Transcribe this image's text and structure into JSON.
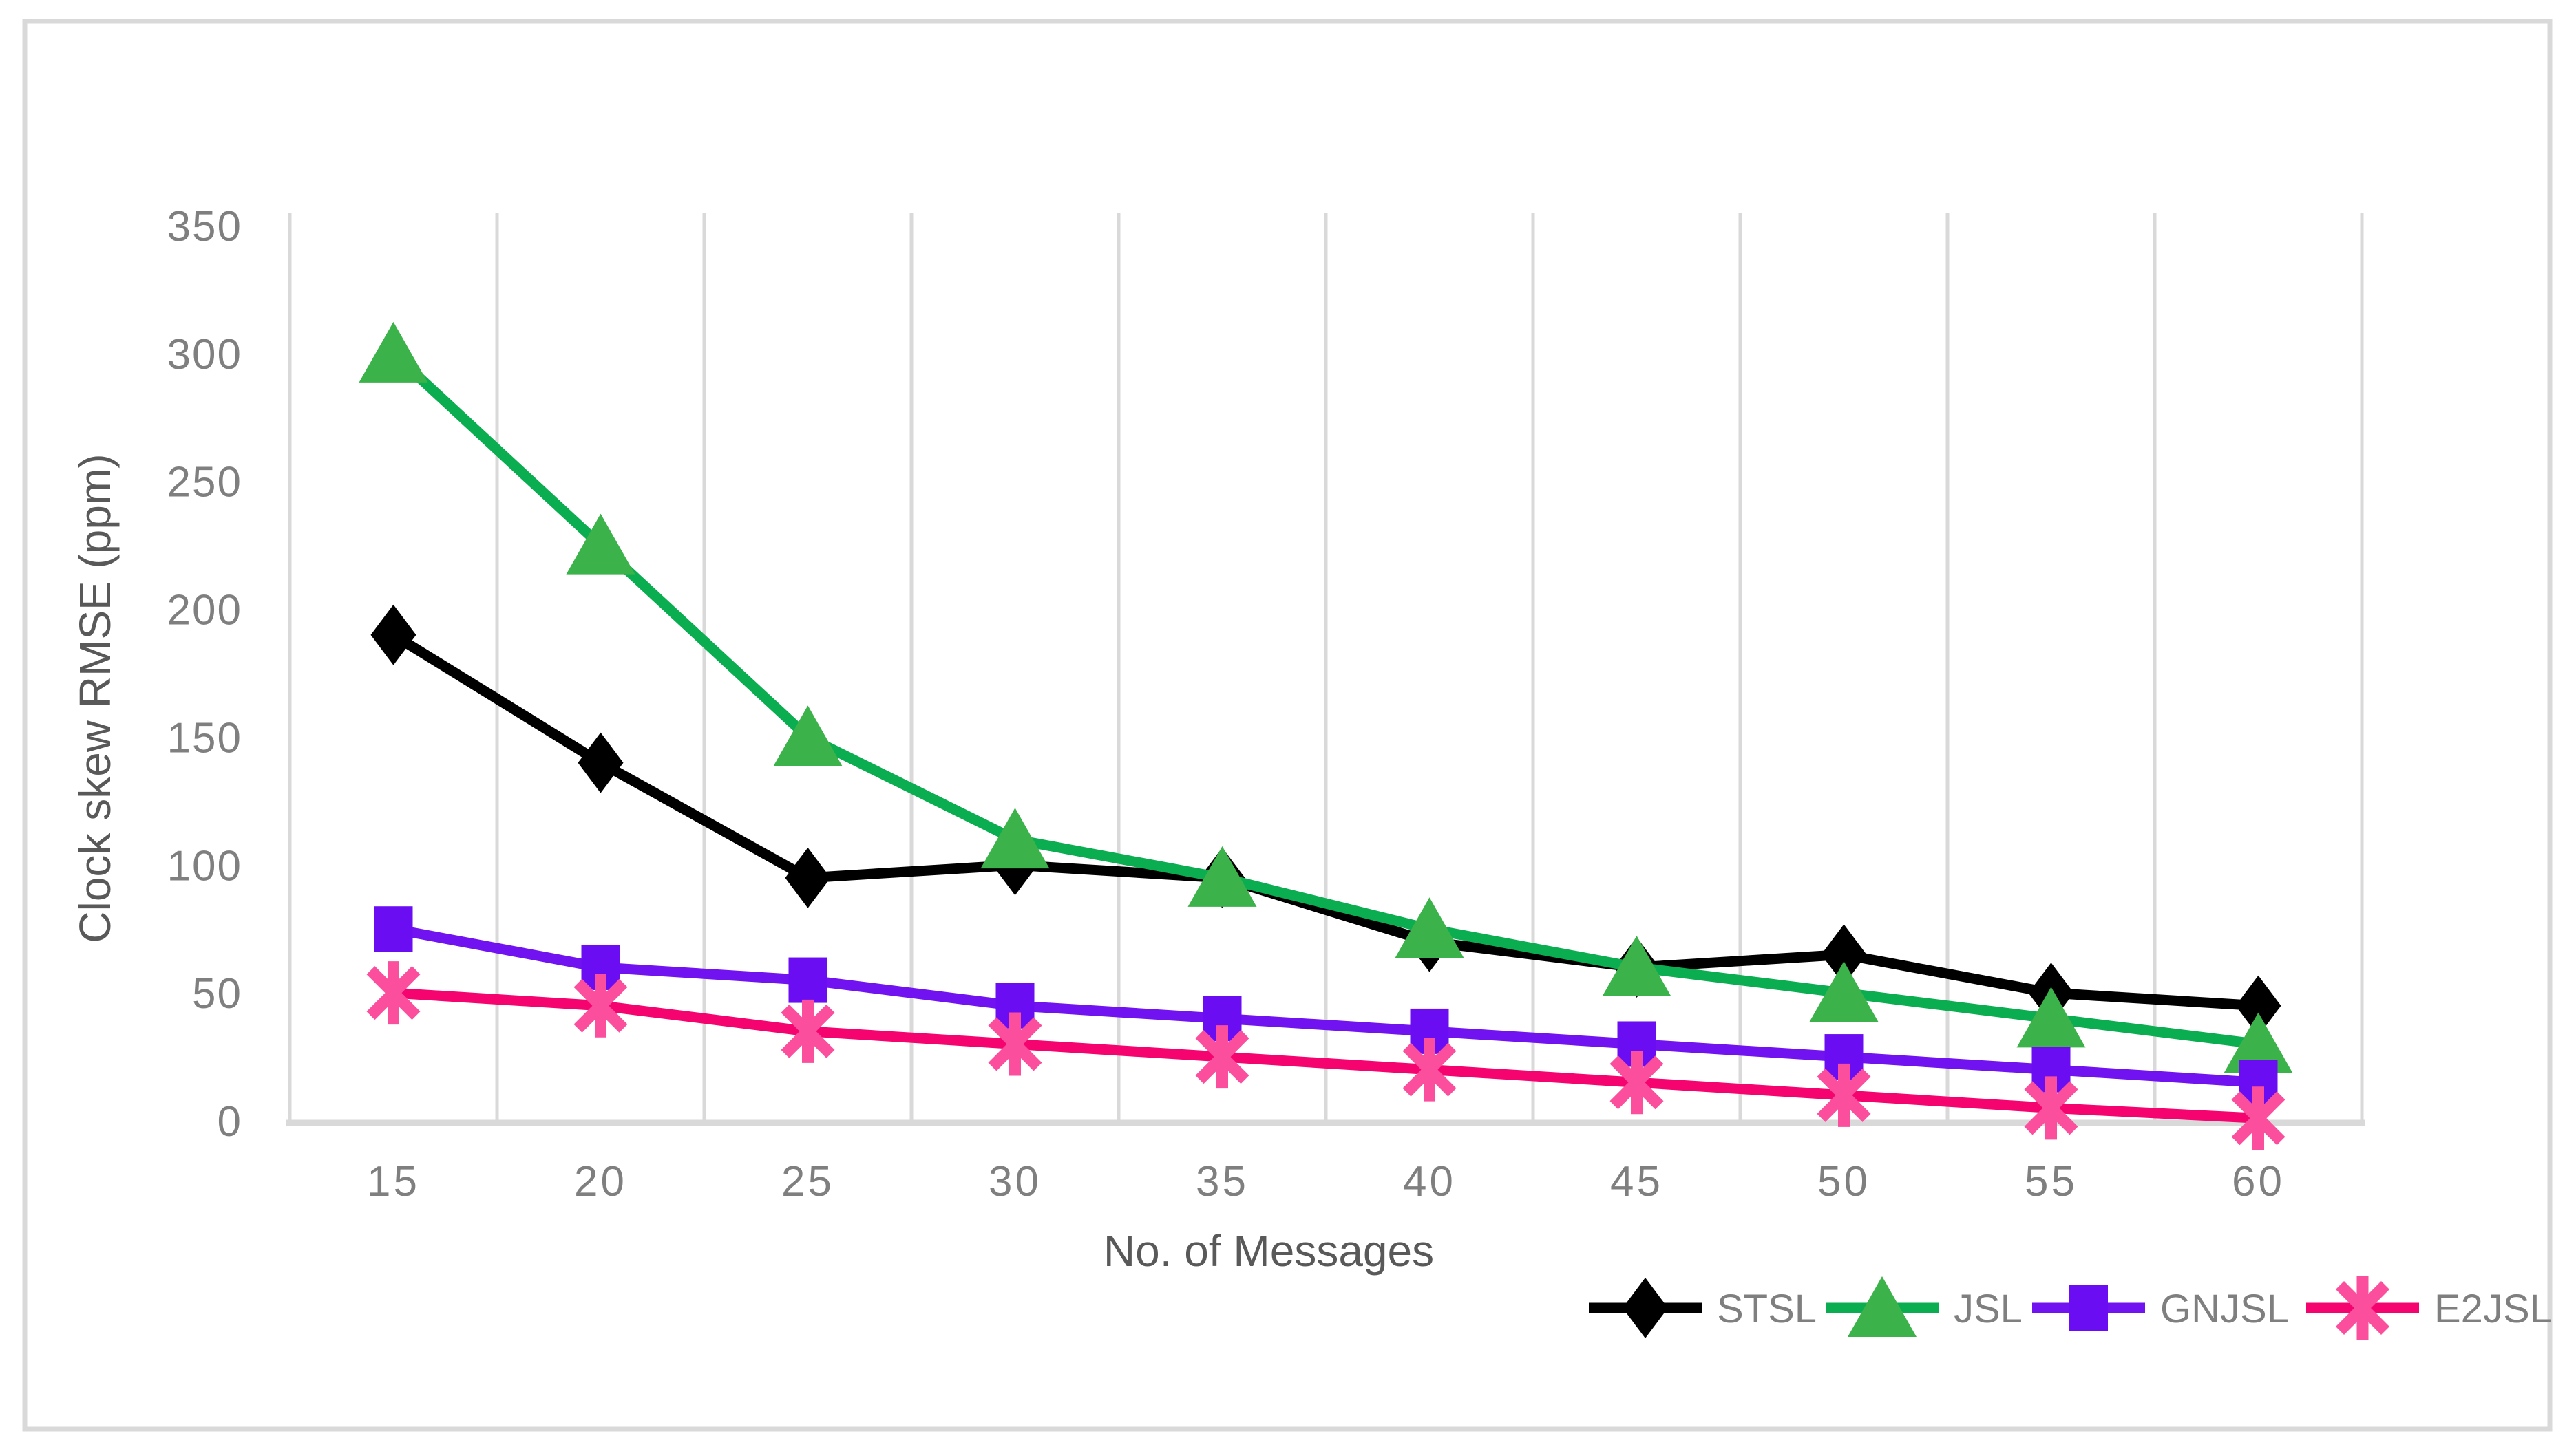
{
  "figure": {
    "background_color": "#ffffff",
    "border_color": "#d9d9d9",
    "gridline_color": "#d9d9d9",
    "tick_text_color": "#7f7f7f",
    "axis_title_color": "#595959",
    "legend_text_color": "#7f7f7f"
  },
  "chart_data": {
    "type": "line",
    "title": "",
    "xlabel": "No. of Messages",
    "ylabel": "Clock skew RMSE (ppm)",
    "x": [
      15,
      20,
      25,
      30,
      35,
      40,
      45,
      50,
      55,
      60
    ],
    "yticks": [
      0,
      50,
      100,
      150,
      200,
      250,
      300,
      350
    ],
    "ylim": [
      0,
      350
    ],
    "grid": "vertical-only",
    "legend_position": "bottom-right",
    "series": [
      {
        "name": "STSL",
        "marker": "diamond",
        "line_color": "#000000",
        "marker_color": "#000000",
        "values": [
          190,
          140,
          95,
          100,
          95,
          70,
          60,
          65,
          50,
          45
        ]
      },
      {
        "name": "JSL",
        "marker": "triangle",
        "line_color": "#0aad4f",
        "marker_color": "#3cb24a",
        "values": [
          300,
          225,
          150,
          110,
          95,
          75,
          60,
          50,
          40,
          30
        ]
      },
      {
        "name": "GNJSL",
        "marker": "square",
        "line_color": "#7112f1",
        "marker_color": "#6a0df2",
        "values": [
          75,
          60,
          55,
          45,
          40,
          35,
          30,
          25,
          20,
          15
        ]
      },
      {
        "name": "E2JSL",
        "marker": "asterisk",
        "line_color": "#f5046f",
        "marker_color": "#fb4f9e",
        "values": [
          50,
          45,
          35,
          30,
          25,
          20,
          15,
          10,
          5,
          1
        ]
      }
    ]
  }
}
